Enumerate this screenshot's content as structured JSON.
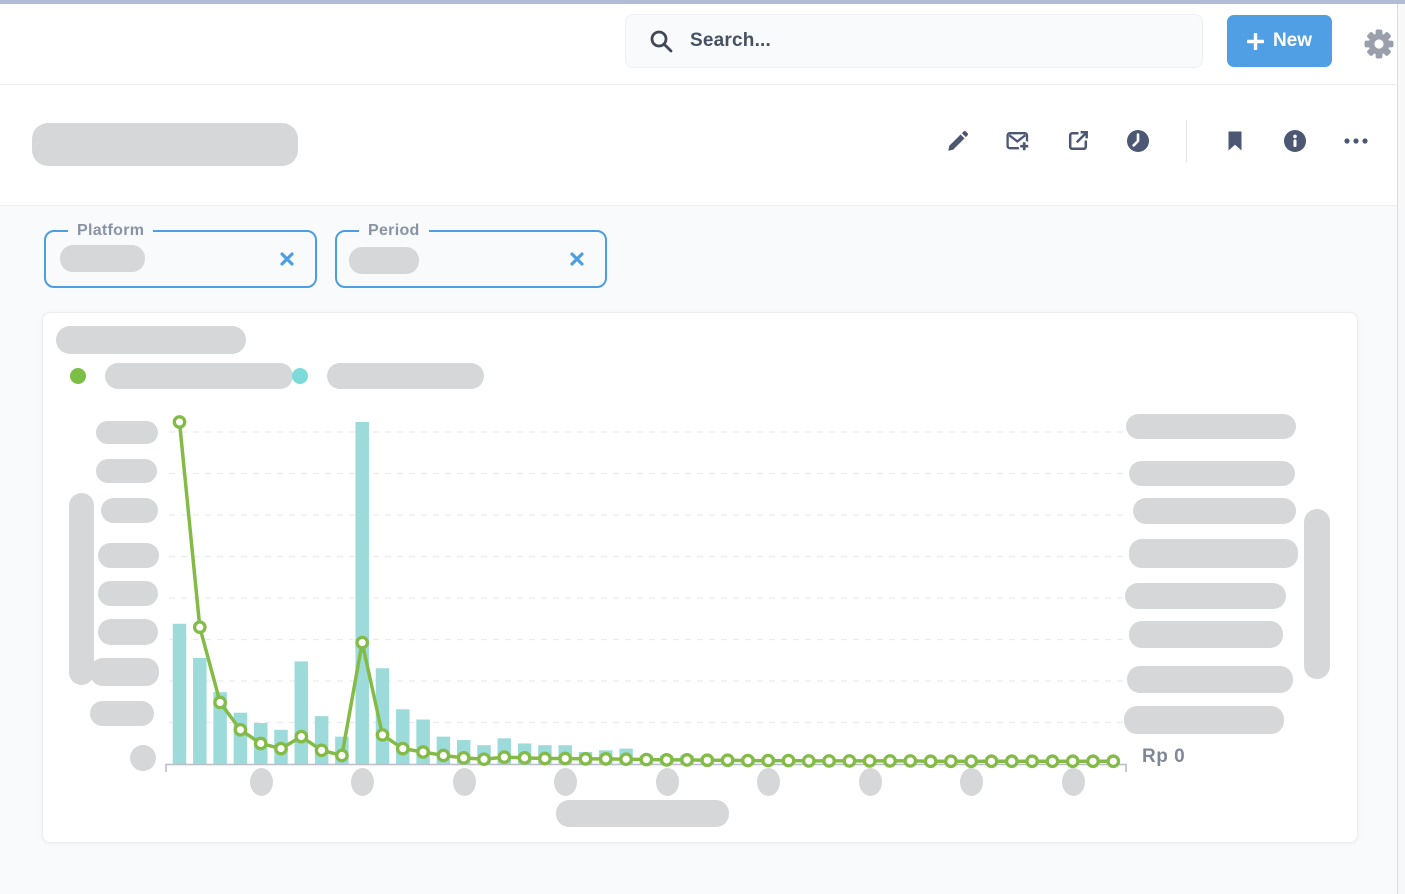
{
  "topbar": {
    "search": {
      "placeholder": "Search...",
      "icon": "search-icon"
    },
    "new_button": {
      "label": "New",
      "icon": "plus-icon",
      "color": "#509EE3"
    },
    "settings_icon": "gear-icon"
  },
  "page_header": {
    "title_redacted": true,
    "actions": [
      {
        "name": "edit",
        "icon": "pencil-icon"
      },
      {
        "name": "subscriptions",
        "icon": "mail-plus-icon"
      },
      {
        "name": "sharing",
        "icon": "share-icon"
      },
      {
        "name": "auto-refresh",
        "icon": "clock-icon"
      },
      {
        "name": "bookmark",
        "icon": "bookmark-icon"
      },
      {
        "name": "info",
        "icon": "info-icon"
      },
      {
        "name": "more-options",
        "icon": "ellipsis-icon"
      }
    ]
  },
  "filters": [
    {
      "label": "Platform",
      "value_redacted": true,
      "clear_icon": "x-icon",
      "border_color": "#4C9DE1"
    },
    {
      "label": "Period",
      "value_redacted": true,
      "clear_icon": "x-icon",
      "border_color": "#4C9DE1"
    }
  ],
  "card": {
    "title_redacted": true,
    "legend": [
      {
        "color": "#7DBE46",
        "label_redacted": true
      },
      {
        "color": "#7CDBD9",
        "label_redacted": true
      }
    ],
    "right_axis_zero_label": "Rp 0"
  },
  "chart_data": {
    "type": "combo-bar-line",
    "title": "(redacted)",
    "xlabel": "(redacted)",
    "ylabel_left": "(redacted)",
    "ylabel_right": "(redacted, currency Rp)",
    "units": "percent of max value (axis tick labels redacted in source)",
    "x_count": 47,
    "x_tick_indices": [
      5,
      10,
      15,
      20,
      25,
      30,
      35,
      40,
      45
    ],
    "grid": true,
    "gridline_count": 8,
    "legend_position": "top-left",
    "right_axis_visible_tick": "Rp 0",
    "ylim": [
      0,
      100
    ],
    "series": [
      {
        "name": "(redacted bar series)",
        "type": "bar",
        "color": "#9CDBDA",
        "values": [
          41,
          31,
          21,
          15,
          12,
          10,
          30,
          14,
          8,
          100,
          28,
          16,
          13,
          8,
          7,
          5.5,
          7.5,
          6,
          5.5,
          5.5,
          3.5,
          4,
          4.5,
          2.5,
          2.5,
          2.5,
          2,
          2,
          2,
          2,
          1.5,
          1.5,
          1.5,
          1.2,
          1.2,
          1.2,
          1,
          1,
          1,
          1,
          0.8,
          0.8,
          0.8,
          0.8,
          0.8,
          0.8,
          0.8
        ]
      },
      {
        "name": "(redacted line series)",
        "type": "line",
        "color": "#83BB46",
        "values": [
          100,
          40,
          18,
          10,
          6,
          4.5,
          8,
          4,
          2.5,
          35.5,
          8.5,
          4.5,
          3.5,
          2.5,
          1.8,
          1.4,
          2,
          1.8,
          1.6,
          1.6,
          1.5,
          1.5,
          1.4,
          1.3,
          1.2,
          1.2,
          1.1,
          1.1,
          1,
          1,
          1,
          0.9,
          0.9,
          0.9,
          0.9,
          0.9,
          0.9,
          0.8,
          0.8,
          0.8,
          0.8,
          0.8,
          0.8,
          0.8,
          0.8,
          0.8,
          0.8
        ]
      }
    ]
  }
}
